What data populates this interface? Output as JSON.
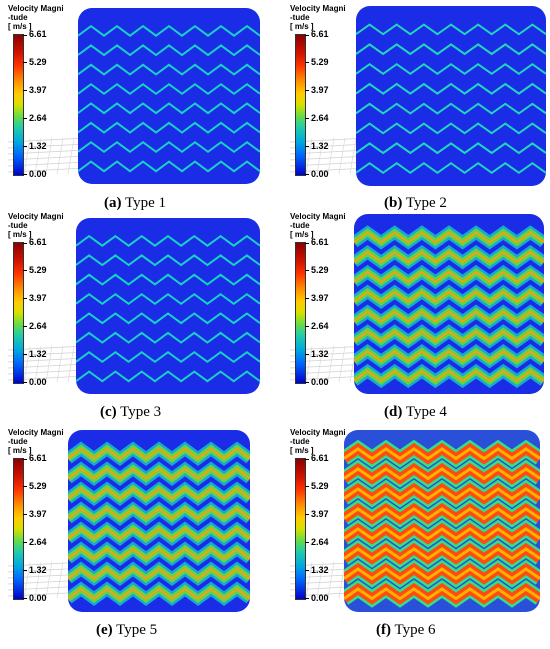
{
  "legend": {
    "title_line1": "Velocity Magni",
    "title_line2": "-tude",
    "unit": "[ m/s ]",
    "ticks": [
      "6.61",
      "5.29",
      "3.97",
      "2.64",
      "1.32",
      "0.00"
    ]
  },
  "panels": [
    {
      "letter": "(a)",
      "label": "Type 1",
      "band_width": 2,
      "band_color": "#19d0c8",
      "glow": false
    },
    {
      "letter": "(b)",
      "label": "Type 2",
      "band_width": 2,
      "band_color": "#22d4c0",
      "glow": false
    },
    {
      "letter": "(c)",
      "label": "Type 3",
      "band_width": 2,
      "band_color": "#19d0c8",
      "glow": false
    },
    {
      "letter": "(d)",
      "label": "Type 4",
      "band_width": 7,
      "band_color": "#5fd540",
      "glow": true
    },
    {
      "letter": "(e)",
      "label": "Type 5",
      "band_width": 7,
      "band_color": "#66d640",
      "glow": true
    },
    {
      "letter": "(f)",
      "label": "Type 6",
      "band_width": 10,
      "band_color": "#ff4a10",
      "glow": true
    }
  ]
}
